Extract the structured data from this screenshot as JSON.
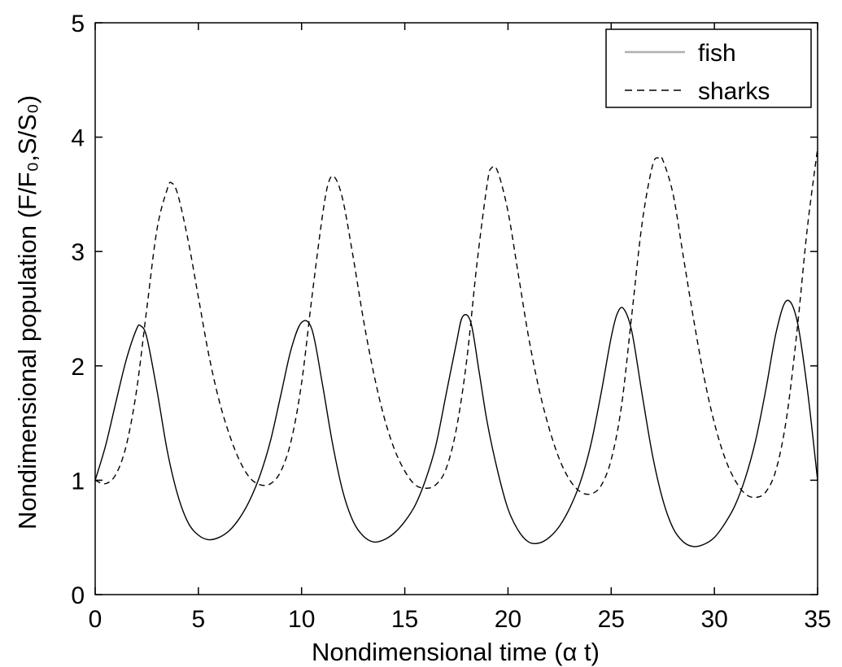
{
  "chart_data": {
    "type": "line",
    "xlabel": "Nondimensional time (α t)",
    "ylabel": "Nondimensional population (F/F₀,S/S₀)",
    "xlim": [
      0,
      35
    ],
    "ylim": [
      0,
      5
    ],
    "x_ticks": [
      "0",
      "5",
      "10",
      "15",
      "20",
      "25",
      "30",
      "35"
    ],
    "y_ticks": [
      "0",
      "1",
      "2",
      "3",
      "4",
      "5"
    ],
    "grid": false,
    "legend_position": "top-right",
    "series": [
      {
        "name": "fish",
        "style": "solid",
        "color": "#000000",
        "legend_color": "#b0b0b0",
        "x": [
          0,
          0.5,
          1,
          1.5,
          2,
          2.2,
          2.5,
          3,
          3.5,
          4,
          4.5,
          5,
          5.5,
          6,
          6.5,
          7,
          7.5,
          8,
          8.5,
          9,
          9.5,
          10,
          10.5,
          11,
          11.5,
          12,
          12.5,
          13,
          13.5,
          14,
          14.5,
          15,
          15.5,
          16,
          16.5,
          17,
          17.5,
          17.8,
          18.2,
          18.6,
          19,
          19.5,
          20,
          20.5,
          21,
          21.5,
          22,
          22.5,
          23,
          23.5,
          24,
          24.5,
          25,
          25.3,
          25.6,
          26,
          26.5,
          27,
          27.5,
          28,
          28.5,
          29,
          29.5,
          30,
          30.5,
          31,
          31.5,
          32,
          32.5,
          33,
          33.5,
          34,
          34.5,
          35
        ],
        "values": [
          1.0,
          1.3,
          1.68,
          2.05,
          2.32,
          2.35,
          2.25,
          1.78,
          1.25,
          0.87,
          0.63,
          0.52,
          0.48,
          0.5,
          0.56,
          0.67,
          0.83,
          1.05,
          1.35,
          1.75,
          2.15,
          2.38,
          2.32,
          1.85,
          1.32,
          0.9,
          0.64,
          0.51,
          0.46,
          0.48,
          0.54,
          0.64,
          0.78,
          1.0,
          1.3,
          1.75,
          2.2,
          2.43,
          2.38,
          1.95,
          1.5,
          1.08,
          0.75,
          0.56,
          0.46,
          0.45,
          0.5,
          0.6,
          0.76,
          0.98,
          1.3,
          1.75,
          2.25,
          2.46,
          2.5,
          2.3,
          1.75,
          1.22,
          0.83,
          0.58,
          0.46,
          0.42,
          0.44,
          0.5,
          0.62,
          0.78,
          1.02,
          1.35,
          1.8,
          2.3,
          2.57,
          2.4,
          1.8,
          1.0
        ]
      },
      {
        "name": "sharks",
        "style": "dashed",
        "color": "#000000",
        "legend_color": "#000000",
        "x": [
          0,
          0.5,
          1,
          1.5,
          2,
          2.5,
          3,
          3.5,
          3.7,
          4,
          4.5,
          5,
          5.5,
          6,
          6.5,
          7,
          7.5,
          8,
          8.5,
          9,
          9.5,
          10,
          10.5,
          11,
          11.3,
          11.6,
          12,
          12.5,
          13,
          13.5,
          14,
          14.5,
          15,
          15.5,
          16,
          16.5,
          17,
          17.5,
          18,
          18.5,
          19,
          19.2,
          19.5,
          20,
          20.5,
          21,
          21.5,
          22,
          22.5,
          23,
          23.5,
          24,
          24.5,
          25,
          25.5,
          26,
          26.5,
          27,
          27.3,
          27.5,
          28,
          28.5,
          29,
          29.5,
          30,
          30.5,
          31,
          31.5,
          32,
          32.5,
          33,
          33.5,
          34,
          34.5,
          35
        ],
        "values": [
          1.0,
          0.97,
          1.05,
          1.3,
          1.78,
          2.5,
          3.2,
          3.55,
          3.6,
          3.5,
          3.1,
          2.6,
          2.1,
          1.7,
          1.4,
          1.17,
          1.02,
          0.96,
          0.97,
          1.08,
          1.35,
          1.85,
          2.6,
          3.3,
          3.6,
          3.65,
          3.45,
          2.95,
          2.4,
          1.93,
          1.55,
          1.27,
          1.08,
          0.96,
          0.93,
          0.96,
          1.1,
          1.45,
          2.05,
          2.9,
          3.6,
          3.73,
          3.7,
          3.35,
          2.8,
          2.25,
          1.8,
          1.45,
          1.18,
          1.0,
          0.9,
          0.88,
          0.95,
          1.18,
          1.65,
          2.45,
          3.25,
          3.75,
          3.82,
          3.8,
          3.5,
          2.95,
          2.4,
          1.9,
          1.5,
          1.2,
          1.0,
          0.88,
          0.85,
          0.9,
          1.1,
          1.55,
          2.3,
          3.2,
          3.9
        ]
      }
    ]
  }
}
